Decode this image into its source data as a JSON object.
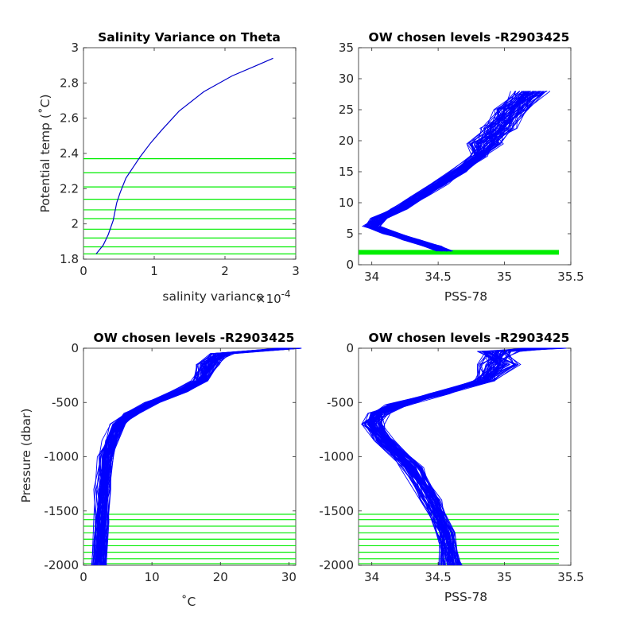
{
  "chart_data": [
    {
      "type": "line",
      "title": "Salinity Variance on Theta",
      "xlabel": "salinity variance",
      "xlabel_exponent": "×10",
      "xlabel_exponent_power": "-4",
      "ylabel": "Potential temp (˚C)",
      "xlim": [
        0,
        3
      ],
      "ylim": [
        1.8,
        3.0
      ],
      "xticks": [
        "0",
        "1",
        "2",
        "3"
      ],
      "yticks": [
        "1.8",
        "2",
        "2.2",
        "2.4",
        "2.6",
        "2.8",
        "3"
      ],
      "series": [
        {
          "color": "#0000cc",
          "x": [
            0.18,
            0.22,
            0.28,
            0.35,
            0.42,
            0.47,
            0.52,
            0.6,
            0.7,
            0.8,
            0.95,
            1.1,
            1.35,
            1.7,
            2.1,
            2.45,
            2.68
          ],
          "y": [
            1.83,
            1.85,
            1.88,
            1.94,
            2.02,
            2.12,
            2.18,
            2.26,
            2.32,
            2.38,
            2.46,
            2.53,
            2.64,
            2.75,
            2.84,
            2.9,
            2.94
          ]
        }
      ],
      "hlines": {
        "color": "#00ee00",
        "y": [
          1.83,
          1.87,
          1.92,
          1.97,
          2.03,
          2.08,
          2.14,
          2.21,
          2.29,
          2.37
        ]
      }
    },
    {
      "type": "line",
      "title": "OW chosen levels -R2903425",
      "xlabel": "PSS-78",
      "ylabel": "",
      "xlim": [
        33.9,
        35.5
      ],
      "ylim": [
        0,
        35
      ],
      "xticks": [
        "34",
        "34.5",
        "35",
        "35.5"
      ],
      "yticks": [
        "0",
        "5",
        "10",
        "15",
        "20",
        "25",
        "30",
        "35"
      ],
      "series": [
        {
          "color": "#0000ff",
          "x": [
            34.55,
            34.45,
            34.3,
            34.15,
            34.0,
            34.05,
            34.2,
            34.35,
            34.5,
            34.65,
            34.8,
            34.85,
            34.95,
            35.05,
            35.2
          ],
          "y": [
            2.2,
            3.0,
            4.0,
            5.0,
            6.2,
            7.5,
            9.0,
            11.0,
            13.0,
            15.0,
            17.5,
            19.5,
            22.0,
            25.0,
            28.0
          ]
        }
      ],
      "hlines": {
        "color": "#00ee00",
        "y": [
          2.0
        ]
      }
    },
    {
      "type": "line",
      "title": "OW chosen levels -R2903425",
      "xlabel": "˚C",
      "ylabel": "Pressure (dbar)",
      "xlim": [
        0,
        31
      ],
      "ylim": [
        -2000,
        0
      ],
      "xticks": [
        "0",
        "10",
        "20",
        "30"
      ],
      "yticks": [
        "-2000",
        "-1500",
        "-1000",
        "-500",
        "0"
      ],
      "series": [
        {
          "color": "#0000ff",
          "x": [
            30.0,
            20.0,
            18.0,
            17.0,
            14.0,
            10.0,
            7.0,
            5.0,
            4.0,
            3.2,
            2.8,
            2.5,
            2.2
          ],
          "y": [
            0,
            -50,
            -150,
            -300,
            -400,
            -500,
            -600,
            -700,
            -850,
            -1000,
            -1300,
            -1600,
            -2000
          ]
        }
      ],
      "hlines": {
        "color": "#00ee00",
        "y": [
          -1530,
          -1580,
          -1640,
          -1700,
          -1760,
          -1820,
          -1880,
          -1940,
          -1985
        ]
      }
    },
    {
      "type": "line",
      "title": "OW chosen levels -R2903425",
      "xlabel": "PSS-78",
      "ylabel": "",
      "xlim": [
        33.9,
        35.5
      ],
      "ylim": [
        -2000,
        0
      ],
      "xticks": [
        "34",
        "34.5",
        "35",
        "35.5"
      ],
      "yticks": [
        "-2000",
        "-1500",
        "-1000",
        "-500",
        "0"
      ],
      "series": [
        {
          "color": "#0000ff",
          "x": [
            35.3,
            34.95,
            34.95,
            34.85,
            34.5,
            34.2,
            34.05,
            34.0,
            34.1,
            34.3,
            34.45,
            34.55,
            34.6
          ],
          "y": [
            0,
            -30,
            -150,
            -300,
            -420,
            -520,
            -600,
            -700,
            -850,
            -1100,
            -1400,
            -1700,
            -2000
          ]
        }
      ],
      "hlines": {
        "color": "#00ee00",
        "y": [
          -1530,
          -1580,
          -1640,
          -1700,
          -1760,
          -1820,
          -1880,
          -1940,
          -1985
        ]
      }
    }
  ]
}
